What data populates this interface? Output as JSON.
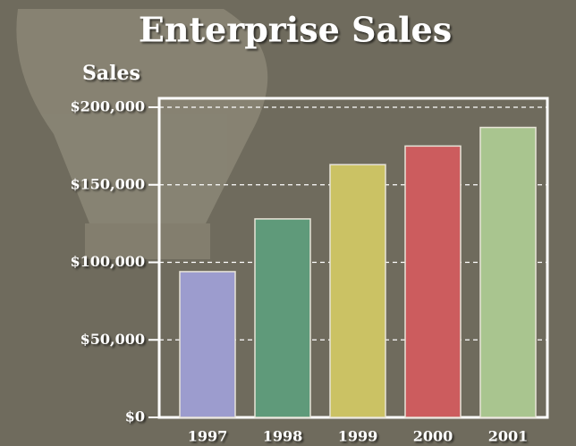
{
  "chart_data": {
    "type": "bar",
    "title": "Enterprise Sales",
    "y_label": "Sales",
    "categories": [
      "1997",
      "1998",
      "1999",
      "2000",
      "2001"
    ],
    "values": [
      94000,
      128000,
      163000,
      175000,
      187000
    ],
    "colors": [
      "#9c9cce",
      "#5f9a7a",
      "#cbc264",
      "#cc5c5e",
      "#a9c58f"
    ],
    "ylim": [
      0,
      200000
    ],
    "yticks": [
      {
        "value": 0,
        "label": "$0"
      },
      {
        "value": 50000,
        "label": "$50,000"
      },
      {
        "value": 100000,
        "label": "$100,000"
      },
      {
        "value": 150000,
        "label": "$150,000"
      },
      {
        "value": 200000,
        "label": "$200,000"
      }
    ],
    "grid": true
  }
}
